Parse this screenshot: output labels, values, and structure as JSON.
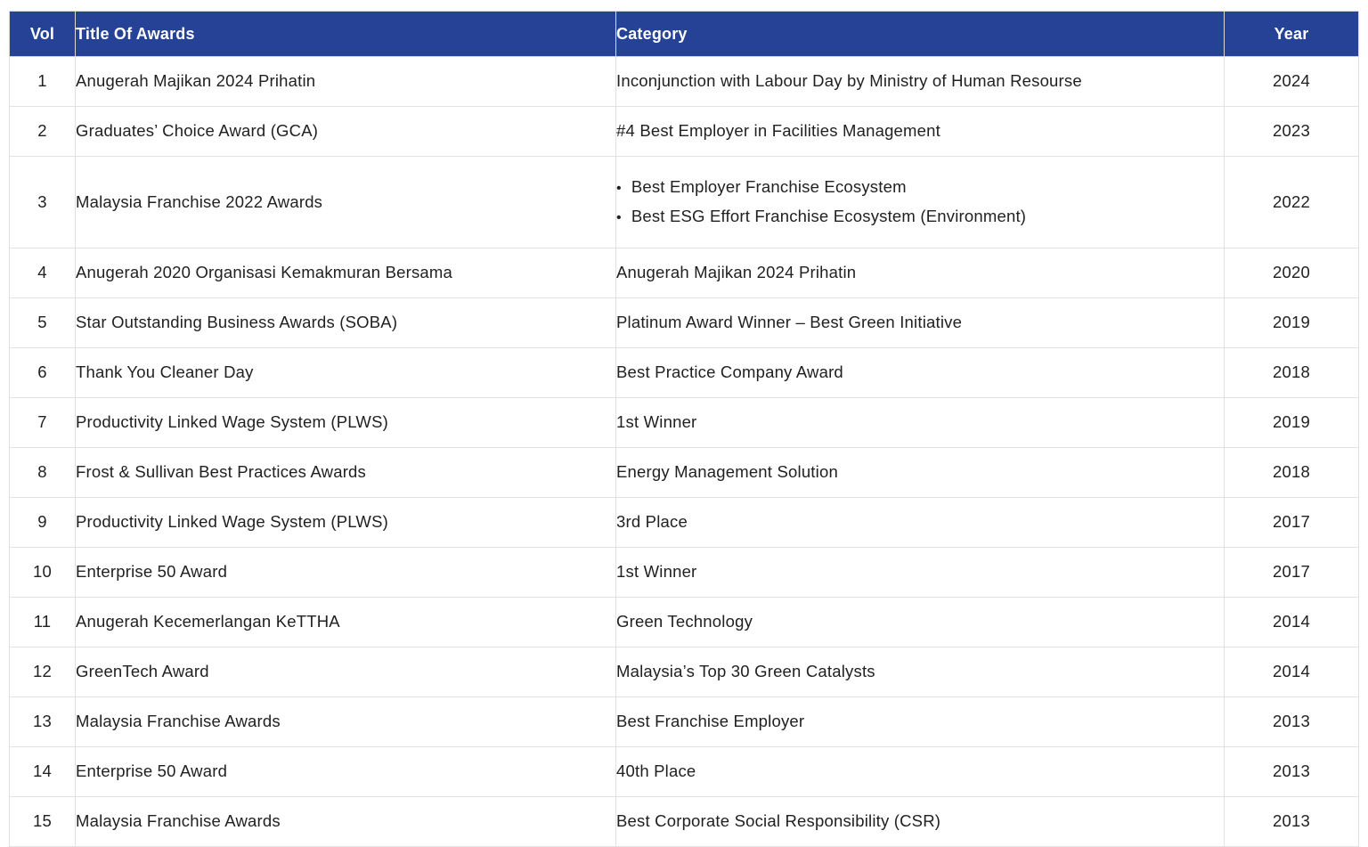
{
  "colors": {
    "header_bg": "#254296",
    "header_text": "#ffffff",
    "body_text": "#212121",
    "border": "#e2e2e2",
    "row_bg": "#ffffff"
  },
  "table": {
    "columns": [
      {
        "key": "vol",
        "label": "Vol"
      },
      {
        "key": "title",
        "label": "Title Of Awards"
      },
      {
        "key": "category",
        "label": "Category"
      },
      {
        "key": "year",
        "label": "Year"
      }
    ],
    "rows": [
      {
        "vol": "1",
        "title": "Anugerah Majikan 2024 Prihatin",
        "category": [
          "Inconjunction with Labour Day by Ministry of Human Resourse"
        ],
        "year": "2024"
      },
      {
        "vol": "2",
        "title": "Graduates’ Choice Award (GCA)",
        "category": [
          "#4 Best Employer in Facilities Management"
        ],
        "year": "2023"
      },
      {
        "vol": "3",
        "title": "Malaysia Franchise 2022 Awards",
        "category": [
          "Best Employer Franchise Ecosystem",
          "Best ESG Effort Franchise Ecosystem (Environment)"
        ],
        "year": "2022"
      },
      {
        "vol": "4",
        "title": "Anugerah 2020 Organisasi Kemakmuran Bersama",
        "category": [
          "Anugerah Majikan 2024 Prihatin"
        ],
        "year": "2020"
      },
      {
        "vol": "5",
        "title": "Star Outstanding Business Awards (SOBA)",
        "category": [
          "Platinum Award Winner – Best Green Initiative"
        ],
        "year": "2019"
      },
      {
        "vol": "6",
        "title": "Thank You Cleaner Day",
        "category": [
          "Best Practice Company Award"
        ],
        "year": "2018"
      },
      {
        "vol": "7",
        "title": "Productivity Linked Wage System (PLWS)",
        "category": [
          "1st Winner"
        ],
        "year": "2019"
      },
      {
        "vol": "8",
        "title": "Frost & Sullivan Best Practices Awards",
        "category": [
          "Energy Management Solution"
        ],
        "year": "2018"
      },
      {
        "vol": "9",
        "title": "Productivity Linked Wage System (PLWS)",
        "category": [
          "3rd Place"
        ],
        "year": "2017"
      },
      {
        "vol": "10",
        "title": "Enterprise 50 Award",
        "category": [
          "1st Winner"
        ],
        "year": "2017"
      },
      {
        "vol": "11",
        "title": "Anugerah Kecemerlangan KeTTHA",
        "category": [
          "Green Technology"
        ],
        "year": "2014"
      },
      {
        "vol": "12",
        "title": "GreenTech Award",
        "category": [
          "Malaysia’s Top 30 Green Catalysts"
        ],
        "year": "2014"
      },
      {
        "vol": "13",
        "title": "Malaysia Franchise Awards",
        "category": [
          "Best Franchise Employer"
        ],
        "year": "2013"
      },
      {
        "vol": "14",
        "title": "Enterprise 50 Award",
        "category": [
          "40th Place"
        ],
        "year": "2013"
      },
      {
        "vol": "15",
        "title": "Malaysia Franchise Awards",
        "category": [
          "Best Corporate Social Responsibility (CSR)"
        ],
        "year": "2013"
      }
    ]
  }
}
